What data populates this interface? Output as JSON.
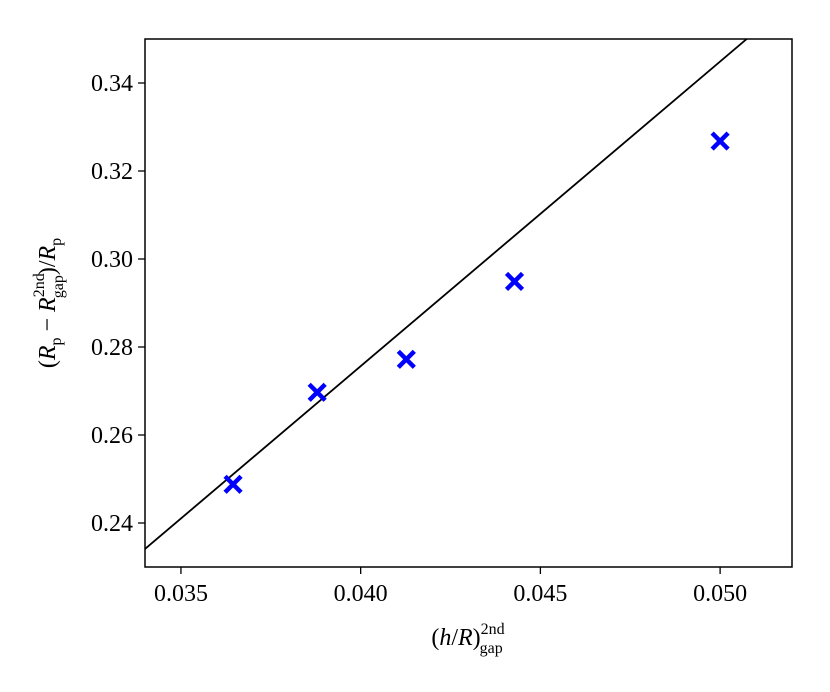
{
  "chart_data": {
    "type": "scatter",
    "xlabel": [
      "(",
      "h",
      "/",
      "R",
      ")",
      "2nd",
      "gap"
    ],
    "ylabel": [
      "(",
      "R",
      "p",
      " − ",
      "R",
      "2nd",
      "gap",
      ")/",
      "R",
      "p"
    ],
    "x": [
      0.03645,
      0.03879,
      0.04127,
      0.04428,
      0.05
    ],
    "values": [
      0.2488,
      0.2697,
      0.2772,
      0.2949,
      0.3268
    ],
    "color": "#0000ff",
    "fit": {
      "x": [
        0.034,
        0.05074
      ],
      "values": [
        0.2341,
        0.35
      ],
      "color": "#000000"
    },
    "xlim": [
      0.034,
      0.052
    ],
    "ylim": [
      0.23,
      0.35
    ],
    "xticks": [
      0.035,
      {
        "value": 0.04,
        "label": "0.040"
      },
      0.045,
      {
        "value": 0.05,
        "label": "0.050"
      }
    ],
    "yticks": [
      0.24,
      0.26,
      0.28,
      {
        "value": 0.3,
        "label": "0.30"
      },
      0.32,
      0.34
    ],
    "grid": false
  }
}
